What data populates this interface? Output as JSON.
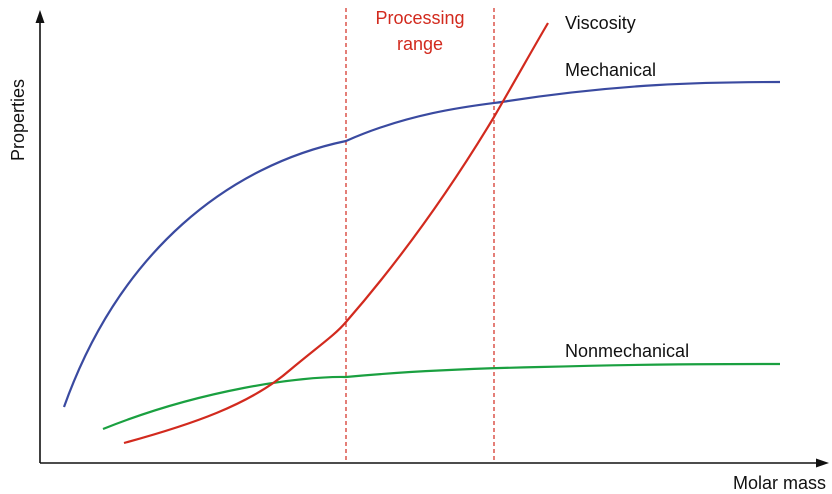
{
  "axes": {
    "x_label": "Molar mass",
    "y_label": "Properties"
  },
  "processing_range": {
    "label_line1": "Processing",
    "label_line2": "range",
    "color": "#d22a1e"
  },
  "curves": {
    "viscosity": {
      "label": "Viscosity",
      "color": "#d22a1e"
    },
    "mechanical": {
      "label": "Mechanical",
      "color": "#3a4aa0"
    },
    "nonmechanical": {
      "label": "Nonmechanical",
      "color": "#1aa040"
    }
  },
  "colors": {
    "axis": "#111111",
    "text": "#111111"
  }
}
